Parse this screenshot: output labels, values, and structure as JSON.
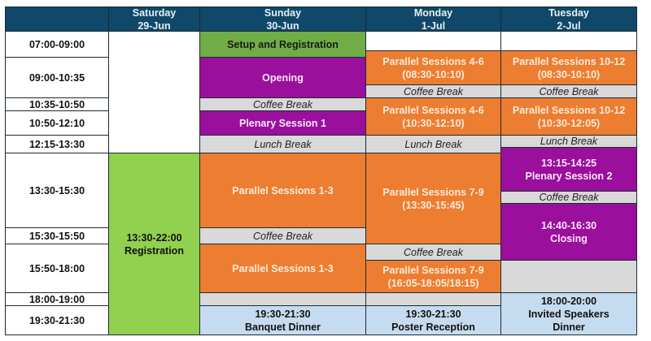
{
  "header": {
    "days": [
      {
        "name": "Saturday",
        "date": "29-Jun"
      },
      {
        "name": "Sunday",
        "date": "30-Jun"
      },
      {
        "name": "Monday",
        "date": "1-Jul"
      },
      {
        "name": "Tuesday",
        "date": "2-Jul"
      }
    ]
  },
  "times": [
    "07:00-09:00",
    "09:00-10:35",
    "10:35-10:50",
    "10:50-12:10",
    "12:15-13:30",
    "13:30-15:30",
    "15:30-15:50",
    "15:50-18:00",
    "18:00-19:00",
    "19:30-21:30"
  ],
  "saturday": {
    "registration_time": "13:30-22:00",
    "registration": "Registration"
  },
  "sunday": {
    "setup": "Setup and Registration",
    "opening": "Opening",
    "coffee": "Coffee Break",
    "plenary": "Plenary Session 1",
    "lunch": "Lunch Break",
    "parallel1": "Parallel Sessions 1-3",
    "coffee2": "Coffee Break",
    "parallel2": "Parallel Sessions 1-3",
    "dinner_time": "19:30-21:30",
    "dinner": "Banquet Dinner"
  },
  "monday": {
    "p1": "Parallel Sessions 4-6",
    "p1_time": "(08:30-10:10)",
    "coffee": "Coffee Break",
    "p2": "Parallel Sessions 4-6",
    "p2_time": "(10:30-12:10)",
    "lunch": "Lunch Break",
    "p3": "Parallel Sessions 7-9",
    "p3_time": "(13:30-15:45)",
    "coffee2": "Coffee Break",
    "p4": "Parallel Sessions 7-9",
    "p4_time": "(16:05-18:05/18:15)",
    "poster_time": "19:30-21:30",
    "poster": "Poster Reception"
  },
  "tuesday": {
    "p1": "Parallel Sessions 10-12",
    "p1_time": "(08:30-10:10)",
    "coffee": "Coffee Break",
    "p2": "Parallel Sessions 10-12",
    "p2_time": "(10:30-12:05)",
    "lunch": "Lunch Break",
    "plenary_time": "13:15-14:25",
    "plenary": "Plenary Session 2",
    "coffee2": "Coffee Break",
    "closing_time": "14:40-16:30",
    "closing": "Closing",
    "dinner_time": "18:00-20:00",
    "dinner": "Invited Speakers Dinner"
  },
  "colors": {
    "header": "#0f4868",
    "green": "#70ad47",
    "light_green": "#92d050",
    "purple": "#9a0f9c",
    "orange": "#ed7d31",
    "gray": "#d9d9d9",
    "light_blue": "#c5dcf0"
  }
}
